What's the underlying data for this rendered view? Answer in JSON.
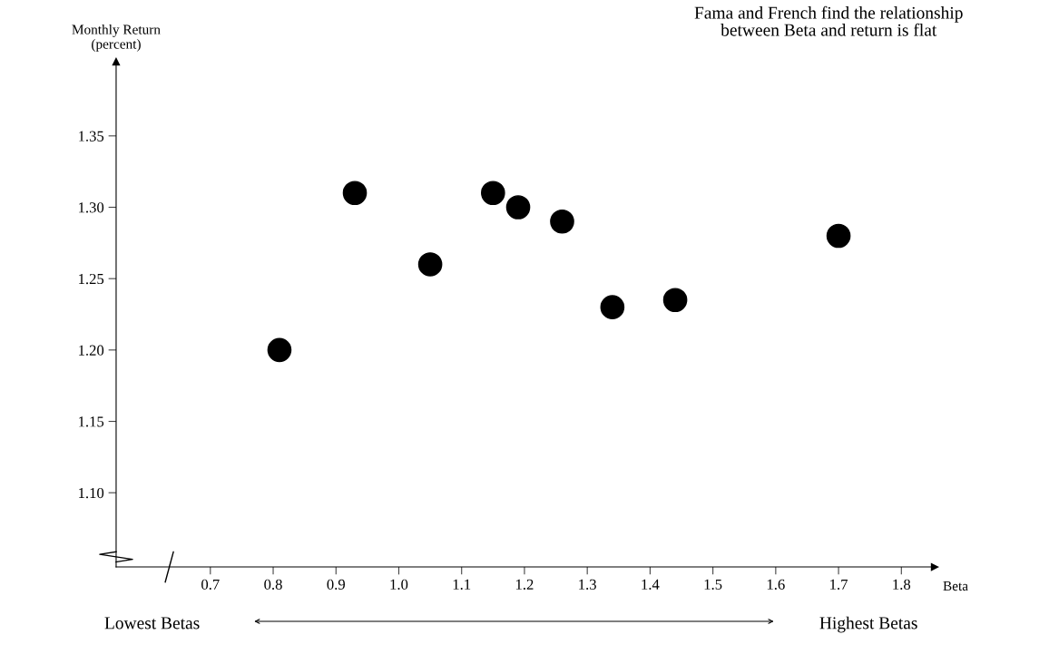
{
  "chart_data": {
    "type": "scatter",
    "xlabel": "Beta",
    "ylabel": "Monthly Return\n(percent)",
    "x": [
      0.81,
      0.93,
      1.05,
      1.15,
      1.19,
      1.26,
      1.34,
      1.44,
      1.7
    ],
    "values": [
      1.2,
      1.31,
      1.26,
      1.31,
      1.3,
      1.29,
      1.23,
      1.235,
      1.28
    ],
    "color": "#000000",
    "marker": "circle",
    "xlim": [
      0.55,
      1.853
    ],
    "ylim": [
      1.048,
      1.402
    ],
    "xticks": [
      0.7,
      0.8,
      0.9,
      {
        "value": 1.0,
        "label": "1.0"
      },
      1.1,
      1.2,
      1.3,
      1.4,
      1.5,
      1.6,
      1.7,
      1.8
    ],
    "yticks": [
      {
        "value": 1.1,
        "label": "1.10"
      },
      1.15,
      {
        "value": 1.2,
        "label": "1.20"
      },
      1.25,
      {
        "value": 1.3,
        "label": "1.30"
      },
      1.35
    ],
    "grid": false,
    "annotations": [
      "Fama and French find the relationship\nbetween Beta and return is flat",
      "Lowest Betas",
      "Highest Betas"
    ]
  }
}
